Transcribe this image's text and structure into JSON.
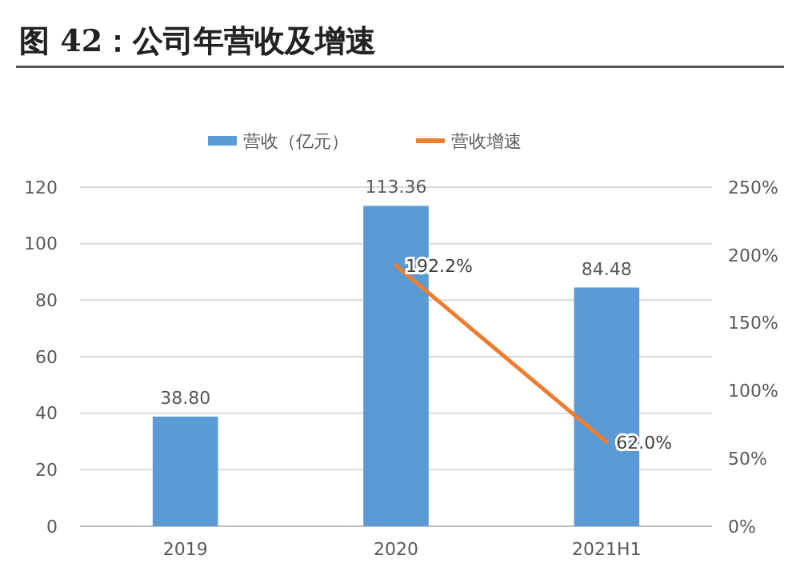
{
  "chart_data": {
    "type": "bar",
    "title": "图 42：公司年营收及增速",
    "categories": [
      "2019",
      "2020",
      "2021H1"
    ],
    "series": [
      {
        "name": "营收（亿元）",
        "color": "#5b9bd5",
        "values": [
          38.8,
          113.36,
          84.48
        ],
        "value_labels": [
          "38.80",
          "113.36",
          "84.48"
        ]
      },
      {
        "name": "营收增速",
        "type": "line",
        "axis": "y2",
        "color": "#ed7d31",
        "values": [
          null,
          192.2,
          62.0
        ],
        "value_labels": [
          null,
          "192.2%",
          "62.0%"
        ]
      }
    ],
    "ylim": [
      0,
      120
    ],
    "yticks": [
      0,
      20,
      40,
      60,
      80,
      100,
      120
    ],
    "y2lim": [
      0,
      250
    ],
    "y2ticks": [
      {
        "value": 0,
        "label": "0%"
      },
      {
        "value": 50,
        "label": "50%"
      },
      {
        "value": 100,
        "label": "100%"
      },
      {
        "value": 150,
        "label": "150%"
      },
      {
        "value": 200,
        "label": "200%"
      },
      {
        "value": 250,
        "label": "250%"
      }
    ],
    "grid": "y",
    "legend": "top",
    "marker": "none",
    "line_style": "solid"
  }
}
